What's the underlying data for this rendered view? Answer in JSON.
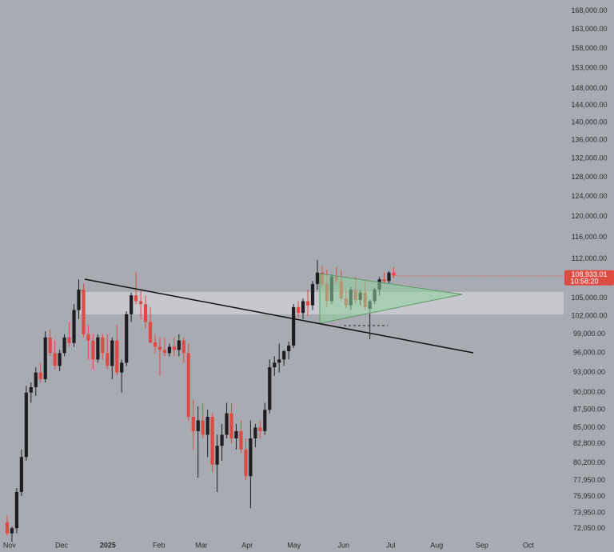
{
  "chart_data": {
    "type": "candlestick",
    "log_scale": true,
    "grid": false,
    "up_color": "#1e1e22",
    "down_color": "#dd4b43",
    "ylim": [
      71000,
      171000
    ],
    "yticks": [
      {
        "value": 168000,
        "label": "168,000.00"
      },
      {
        "value": 163000,
        "label": "163,000.00"
      },
      {
        "value": 158000,
        "label": "158,000.00"
      },
      {
        "value": 153000,
        "label": "153,000.00"
      },
      {
        "value": 148000,
        "label": "148,000.00"
      },
      {
        "value": 144000,
        "label": "144,000.00"
      },
      {
        "value": 140000,
        "label": "140,000.00"
      },
      {
        "value": 136000,
        "label": "136,000.00"
      },
      {
        "value": 132000,
        "label": "132,000.00"
      },
      {
        "value": 128000,
        "label": "128,000.00"
      },
      {
        "value": 124000,
        "label": "124,000.00"
      },
      {
        "value": 120000,
        "label": "120,000.00"
      },
      {
        "value": 116000,
        "label": "116,000.00"
      },
      {
        "value": 112000,
        "label": "112,000.00"
      },
      {
        "value": 105000,
        "label": "105,000.00"
      },
      {
        "value": 102000,
        "label": "102,000.00"
      },
      {
        "value": 99000,
        "label": "99,000.00"
      },
      {
        "value": 96000,
        "label": "96,000.00"
      },
      {
        "value": 93000,
        "label": "93,000.00"
      },
      {
        "value": 90000,
        "label": "90,000.00"
      },
      {
        "value": 87500,
        "label": "87,500.00"
      },
      {
        "value": 85000,
        "label": "85,000.00"
      },
      {
        "value": 82800,
        "label": "82,800.00"
      },
      {
        "value": 80200,
        "label": "80,200.00"
      },
      {
        "value": 77950,
        "label": "77,950.00"
      },
      {
        "value": 75950,
        "label": "75,950.00"
      },
      {
        "value": 73950,
        "label": "73,950.00"
      },
      {
        "value": 72050,
        "label": "72,050.00"
      }
    ],
    "xlim": [
      -1.5,
      116.6
    ],
    "xticks": [
      {
        "value": 0.5,
        "label": "Nov"
      },
      {
        "value": 11.4,
        "label": "Dec"
      },
      {
        "value": 21.1,
        "label": "2025"
      },
      {
        "value": 31.8,
        "label": "Feb"
      },
      {
        "value": 40.7,
        "label": "Mar"
      },
      {
        "value": 50.3,
        "label": "Apr"
      },
      {
        "value": 60.1,
        "label": "May"
      },
      {
        "value": 70.5,
        "label": "Jun"
      },
      {
        "value": 80.4,
        "label": "Jul"
      },
      {
        "value": 90,
        "label": "Aug"
      },
      {
        "value": 99.5,
        "label": "Sep"
      },
      {
        "value": 109.2,
        "label": "Oct"
      }
    ],
    "open": [
      72800,
      71500,
      72100,
      76500,
      81000,
      90000,
      90800,
      93000,
      92000,
      98500,
      96000,
      94000,
      96000,
      98500,
      97600,
      103000,
      106500,
      99000,
      98000,
      95000,
      98500,
      96000,
      94000,
      98000,
      93000,
      94500,
      102300,
      105500,
      104500,
      104000,
      101000,
      97700,
      97000,
      96500,
      96000,
      97000,
      96500,
      98000,
      96000,
      86500,
      84500,
      86000,
      84000,
      86500,
      80000,
      82500,
      84000,
      87000,
      83500,
      84500,
      82000,
      78500,
      83500,
      85000,
      84500,
      87500,
      93800,
      94500,
      95000,
      96300,
      97200,
      103500,
      102500,
      104500,
      103800,
      107500,
      109500,
      107500,
      104500,
      108800,
      108000,
      105000,
      103800,
      106500,
      104700,
      106000,
      103200,
      104500,
      106500,
      108300,
      108000,
      109500
    ],
    "high": [
      73600,
      72300,
      77000,
      82000,
      91000,
      91500,
      93800,
      94500,
      99500,
      99800,
      98000,
      96500,
      99000,
      101000,
      104000,
      108300,
      107500,
      100500,
      99000,
      99000,
      99000,
      99000,
      98500,
      100500,
      95000,
      102800,
      106000,
      109500,
      106500,
      105500,
      103500,
      99000,
      98500,
      98500,
      97500,
      98500,
      99000,
      98500,
      97500,
      89000,
      88000,
      88500,
      87500,
      87000,
      84000,
      85500,
      88500,
      88500,
      85500,
      86000,
      83500,
      86000,
      85500,
      86000,
      88500,
      95000,
      95500,
      97500,
      96500,
      97800,
      104000,
      104500,
      105000,
      106500,
      108000,
      111800,
      110800,
      110000,
      109200,
      110500,
      110000,
      106500,
      107000,
      108700,
      106500,
      108000,
      104800,
      106800,
      108700,
      109500,
      109800,
      110500
    ],
    "low": [
      71200,
      70500,
      71500,
      76000,
      80500,
      88500,
      89500,
      91500,
      91500,
      95500,
      93500,
      93200,
      95500,
      97000,
      97000,
      101500,
      98500,
      95000,
      93500,
      94500,
      95000,
      93500,
      92000,
      92500,
      90000,
      94000,
      101000,
      104000,
      101500,
      100000,
      97500,
      96000,
      92500,
      95500,
      95500,
      95500,
      95500,
      94500,
      86000,
      82000,
      78300,
      83500,
      81000,
      79000,
      76500,
      80500,
      83500,
      82800,
      82000,
      81500,
      78000,
      74500,
      82300,
      83500,
      84000,
      87000,
      92500,
      93000,
      94000,
      95000,
      96800,
      101800,
      101500,
      102000,
      103000,
      106500,
      107000,
      103500,
      104000,
      107500,
      104500,
      103300,
      103000,
      104000,
      103800,
      103000,
      98200,
      104000,
      105500,
      107500,
      107500,
      108500
    ],
    "close": [
      71500,
      72100,
      76500,
      81000,
      90000,
      90800,
      93000,
      92000,
      98500,
      96000,
      94000,
      96000,
      98500,
      97600,
      103000,
      106500,
      99000,
      98000,
      95000,
      98500,
      96000,
      94000,
      98000,
      93000,
      94500,
      102300,
      105500,
      104500,
      104000,
      101000,
      97700,
      97000,
      96500,
      96000,
      97000,
      96500,
      98000,
      96000,
      86500,
      84500,
      86000,
      84000,
      86500,
      80000,
      82500,
      84000,
      87000,
      83500,
      84500,
      82000,
      78500,
      83500,
      85000,
      84500,
      87500,
      93800,
      94500,
      95000,
      96300,
      97200,
      103500,
      102500,
      104500,
      103800,
      107500,
      109500,
      107500,
      104500,
      108800,
      108000,
      105000,
      103800,
      106500,
      104700,
      106000,
      103500,
      104500,
      106500,
      108300,
      108000,
      109500,
      108933.01
    ],
    "last_price_label": "108,933.01",
    "countdown": "10:58:20"
  }
}
